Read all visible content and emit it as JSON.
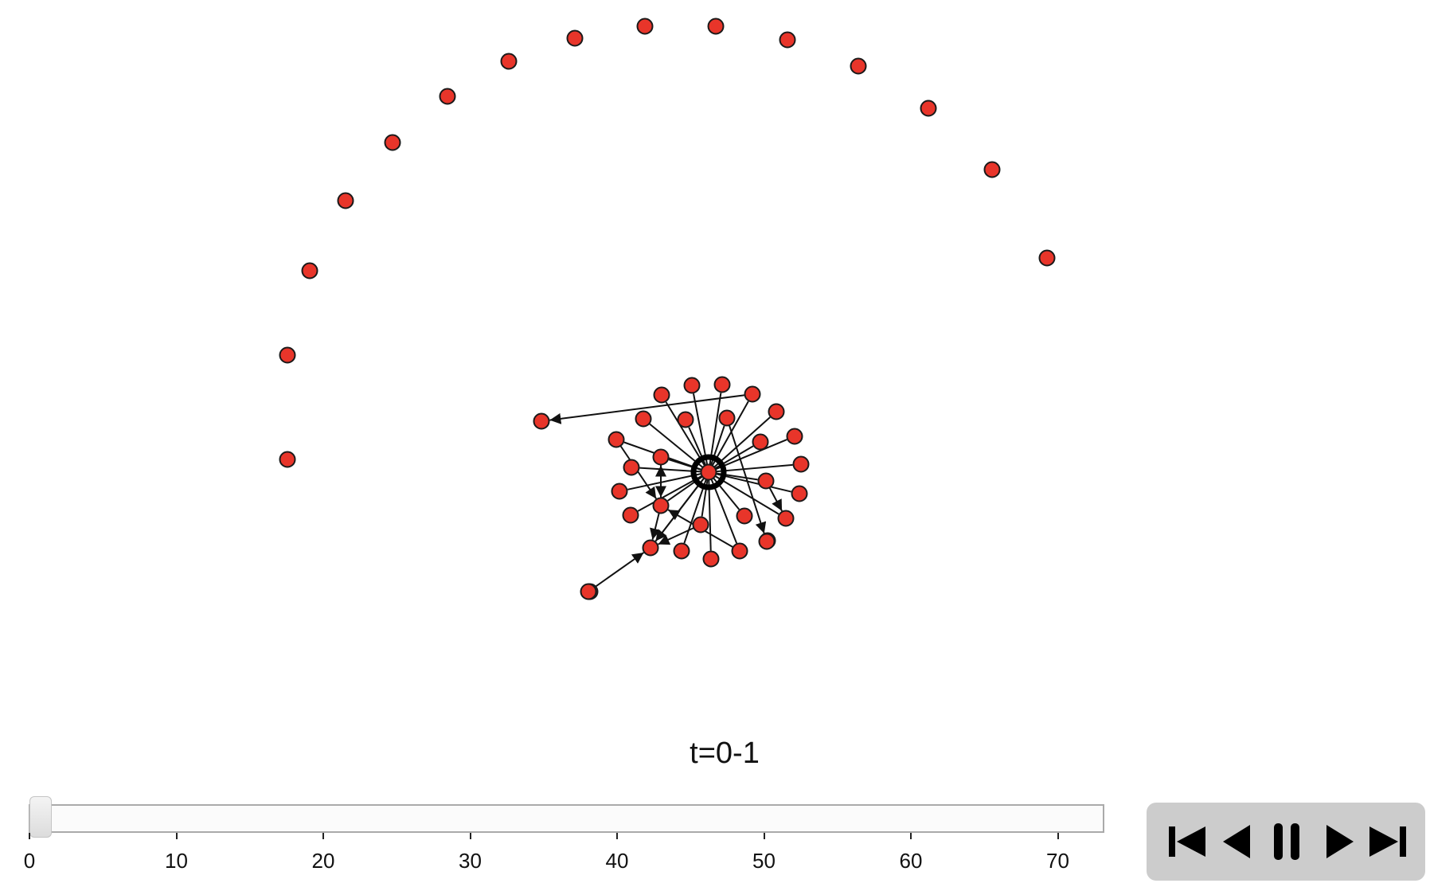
{
  "time_label": "t=0-1",
  "slider": {
    "value": 0,
    "min": 0,
    "max": 73,
    "ticks": [
      "0",
      "10",
      "20",
      "30",
      "40",
      "50",
      "60",
      "70"
    ]
  },
  "controls": {
    "icons": [
      "skip-to-start-icon",
      "step-back-icon",
      "pause-icon",
      "step-forward-icon",
      "skip-to-end-icon"
    ]
  },
  "colors": {
    "node_fill": "#e8352a",
    "node_stroke": "#1a1a1a",
    "edge": "#111111",
    "controls_bg": "#cccccc"
  },
  "network": {
    "hub": "n0",
    "nodes": [
      {
        "id": "n0"
      },
      {
        "id": "a1"
      },
      {
        "id": "a2"
      },
      {
        "id": "a3"
      },
      {
        "id": "a4"
      },
      {
        "id": "a5"
      },
      {
        "id": "a6"
      },
      {
        "id": "a7"
      },
      {
        "id": "a8"
      },
      {
        "id": "a9"
      },
      {
        "id": "a10"
      },
      {
        "id": "a11"
      },
      {
        "id": "a12"
      },
      {
        "id": "a13"
      },
      {
        "id": "a14"
      },
      {
        "id": "a15"
      },
      {
        "id": "a16"
      },
      {
        "id": "c1"
      },
      {
        "id": "c2"
      },
      {
        "id": "c3"
      },
      {
        "id": "c4"
      },
      {
        "id": "c5"
      },
      {
        "id": "c6"
      },
      {
        "id": "c7"
      },
      {
        "id": "c8"
      },
      {
        "id": "c9"
      },
      {
        "id": "c10"
      },
      {
        "id": "c11"
      },
      {
        "id": "c12"
      },
      {
        "id": "c13"
      },
      {
        "id": "c14"
      },
      {
        "id": "c15"
      },
      {
        "id": "c16"
      },
      {
        "id": "c17"
      },
      {
        "id": "c18"
      },
      {
        "id": "c19"
      },
      {
        "id": "c20"
      },
      {
        "id": "c21"
      },
      {
        "id": "c22"
      },
      {
        "id": "c23"
      },
      {
        "id": "c24"
      },
      {
        "id": "c25"
      },
      {
        "id": "c26"
      },
      {
        "id": "c27"
      },
      {
        "id": "c28"
      },
      {
        "id": "c29"
      },
      {
        "id": "c30"
      }
    ],
    "edges": [
      {
        "s": "n0",
        "t": "c1"
      },
      {
        "s": "n0",
        "t": "c2"
      },
      {
        "s": "n0",
        "t": "c3"
      },
      {
        "s": "n0",
        "t": "c4"
      },
      {
        "s": "n0",
        "t": "c5"
      },
      {
        "s": "n0",
        "t": "c6"
      },
      {
        "s": "n0",
        "t": "c7"
      },
      {
        "s": "n0",
        "t": "c8"
      },
      {
        "s": "n0",
        "t": "c9"
      },
      {
        "s": "n0",
        "t": "c10"
      },
      {
        "s": "n0",
        "t": "c11"
      },
      {
        "s": "n0",
        "t": "c12"
      },
      {
        "s": "n0",
        "t": "c13"
      },
      {
        "s": "n0",
        "t": "c14"
      },
      {
        "s": "n0",
        "t": "c15"
      },
      {
        "s": "n0",
        "t": "c16"
      },
      {
        "s": "n0",
        "t": "c17"
      },
      {
        "s": "n0",
        "t": "c18"
      },
      {
        "s": "n0",
        "t": "c19"
      },
      {
        "s": "n0",
        "t": "c20"
      },
      {
        "s": "n0",
        "t": "c21"
      },
      {
        "s": "n0",
        "t": "c22"
      },
      {
        "s": "n0",
        "t": "c23"
      },
      {
        "s": "n0",
        "t": "c24"
      },
      {
        "s": "n0",
        "t": "c26"
      },
      {
        "s": "n0",
        "t": "c27"
      },
      {
        "s": "c4",
        "t": "c29",
        "arrow": true
      },
      {
        "s": "c19",
        "t": "c24",
        "arrow": true
      },
      {
        "s": "c24",
        "t": "c19",
        "arrow": true
      },
      {
        "s": "c21",
        "t": "c24",
        "arrow": true
      },
      {
        "s": "c26",
        "t": "c24",
        "arrow": true
      },
      {
        "s": "c24",
        "t": "c27",
        "arrow": true
      },
      {
        "s": "c22",
        "t": "c27",
        "arrow": true
      },
      {
        "s": "c28",
        "t": "c27",
        "arrow": true
      },
      {
        "s": "c11",
        "t": "c12",
        "arrow": true
      },
      {
        "s": "n0",
        "t": "c27",
        "arrow": true
      },
      {
        "s": "c7",
        "t": "c30",
        "arrow": true
      }
    ]
  }
}
